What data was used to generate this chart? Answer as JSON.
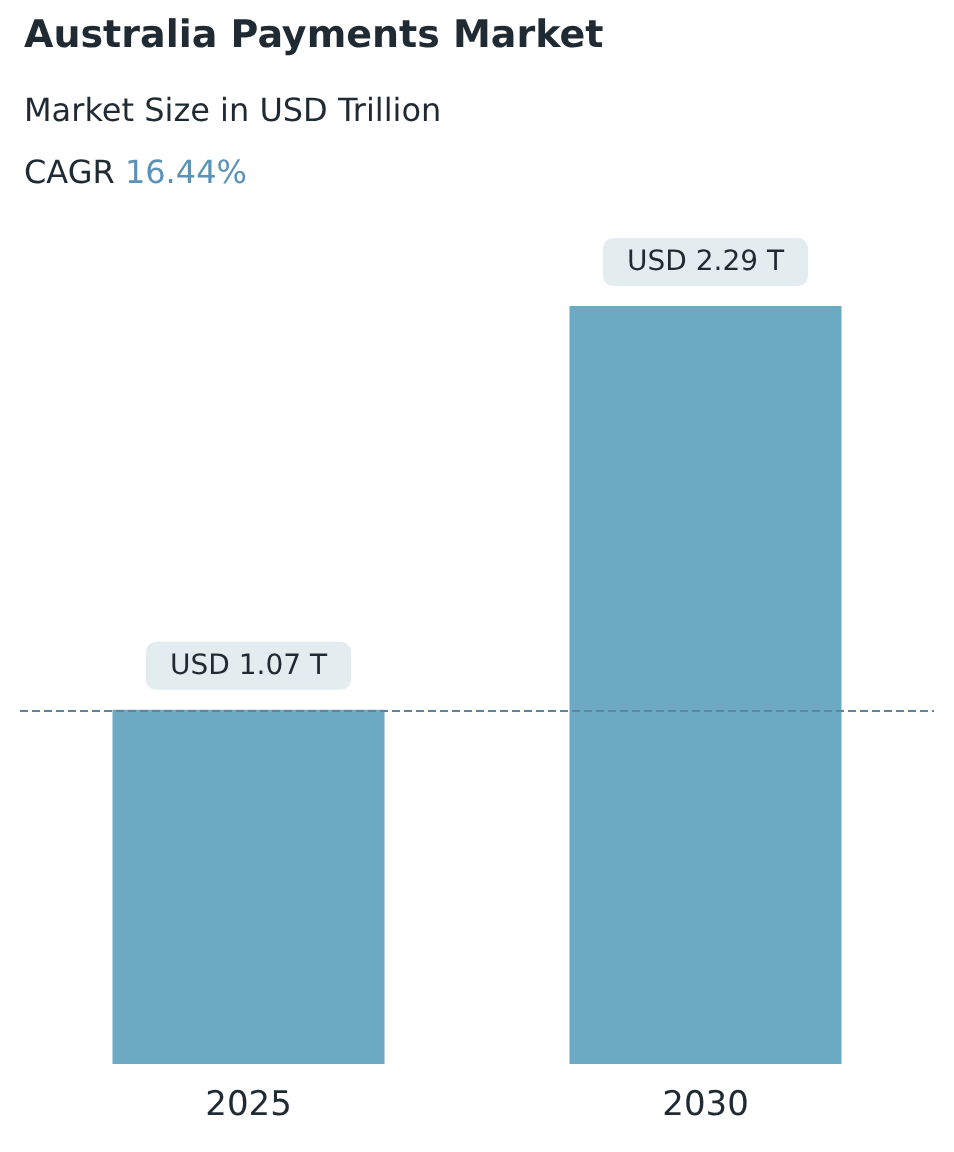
{
  "chart_data": {
    "type": "bar",
    "title": "Australia Payments Market",
    "subtitle": "Market Size in USD Trillion",
    "annotations": [
      "CAGR 16.44%"
    ],
    "categories": [
      "2025",
      "2030"
    ],
    "values": [
      1.07,
      2.29
    ],
    "value_labels": [
      "USD 1.07 T",
      "USD 2.29 T"
    ],
    "color": "#6caac3",
    "ref_lines": [
      {
        "axis": "y",
        "value": 1.07,
        "color": "#5f84a0",
        "line_style": "dashed"
      }
    ]
  }
}
